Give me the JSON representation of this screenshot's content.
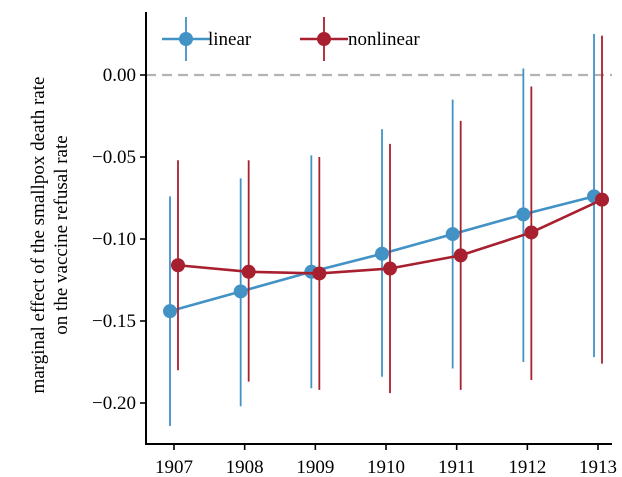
{
  "chart_data": {
    "type": "line",
    "title": "",
    "xlabel": "",
    "ylabel_line1": "marginal effect of the smallpox death rate",
    "ylabel_line2": "on the vaccine refusal rate",
    "categories": [
      "1907",
      "1908",
      "1909",
      "1910",
      "1911",
      "1912",
      "1913"
    ],
    "y_ticks": [
      0.0,
      -0.05,
      -0.1,
      -0.15,
      -0.2
    ],
    "y_tick_labels": [
      "0.00",
      "−0.05",
      "−0.10",
      "−0.15",
      "−0.20"
    ],
    "ylim": [
      -0.22,
      0.025
    ],
    "reference_line": 0.0,
    "legend_position": "top-left",
    "series": [
      {
        "name": "linear",
        "color": "#4292c6",
        "values": [
          -0.144,
          -0.132,
          -0.12,
          -0.109,
          -0.097,
          -0.085,
          -0.074
        ],
        "lower": [
          -0.214,
          -0.202,
          -0.191,
          -0.184,
          -0.179,
          -0.175,
          -0.172
        ],
        "upper": [
          -0.074,
          -0.063,
          -0.049,
          -0.033,
          -0.015,
          0.004,
          0.025
        ]
      },
      {
        "name": "nonlinear",
        "color": "#a8202f",
        "values": [
          -0.116,
          -0.12,
          -0.121,
          -0.118,
          -0.11,
          -0.096,
          -0.076
        ],
        "lower": [
          -0.18,
          -0.187,
          -0.192,
          -0.194,
          -0.192,
          -0.186,
          -0.176
        ],
        "upper": [
          -0.052,
          -0.052,
          -0.05,
          -0.042,
          -0.028,
          -0.007,
          0.024
        ]
      }
    ]
  }
}
